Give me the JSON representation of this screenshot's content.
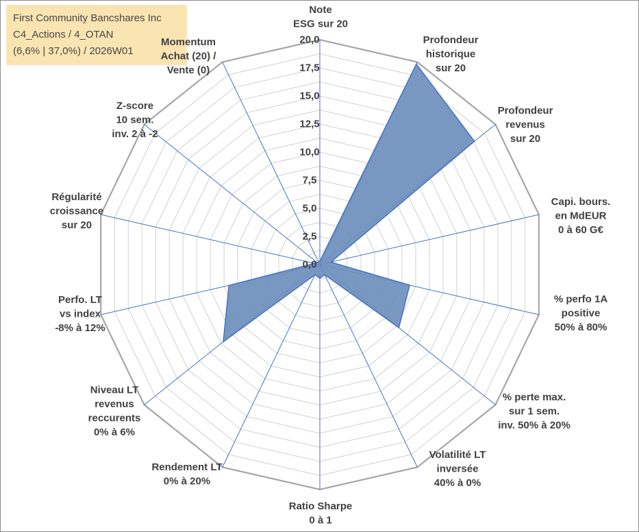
{
  "legend_box": {
    "lines": [
      "First Community Bancshares Inc",
      "C4_Actions / 4_OTAN",
      "(6,6% | 37,0%) / 2026W01"
    ],
    "bg_color": "#FAE5B2"
  },
  "chart_data": {
    "type": "radar",
    "annotation": [
      "First Community Bancshares Inc",
      "C4_Actions / 4_OTAN",
      "(6,6% | 37,0%) / 2026W01"
    ],
    "rmin": 0,
    "rmax": 20,
    "minor_grid_interval": 1.25,
    "tick_labels": [
      "0,0",
      "2,5",
      "5,0",
      "7,5",
      "10,0",
      "12,5",
      "15,0",
      "17,5",
      "20,0"
    ],
    "grid": true,
    "legend_position": "none",
    "axes": [
      {
        "label": "Note\nESG sur 20",
        "value": 0.3
      },
      {
        "label": "Profondeur\nhistorique\nsur 20",
        "value": 19.8
      },
      {
        "label": "Profondeur\nrevenus\nsur 20",
        "value": 17.6
      },
      {
        "label": "Capi. bours.\nen MdEUR\n0 à 60 G€",
        "value": 1.0
      },
      {
        "label": "% perfo 1A\npositive\n50% à 80%",
        "value": 8.2
      },
      {
        "label": "% perte max.\nsur 1 sem.\ninv. 50% à 20%",
        "value": 9.0
      },
      {
        "label": "Volatilité LT\ninversée\n40% à 0%",
        "value": 1.0
      },
      {
        "label": "Ratio Sharpe\n0 à 1",
        "value": 1.2
      },
      {
        "label": "Rendement LT\n0% à 20%",
        "value": 1.0
      },
      {
        "label": "Niveau LT\nrevenus\nreccurents\n0% à 6%",
        "value": 11.0
      },
      {
        "label": "Perfo. LT\nvs index\n-8% à 12%",
        "value": 8.3
      },
      {
        "label": "Régularité\ncroissance\nsur 20",
        "value": 0.5
      },
      {
        "label": "Z-score\n10 sem.\ninv. 2 à -2",
        "value": 0.3
      },
      {
        "label": "Momentum\nAchat (20) /\nVente (0)",
        "value": 0.3
      }
    ],
    "colors": {
      "series_fill": "#6E8FBC",
      "series_stroke": "#4472C4",
      "grid": "#D0D0D0",
      "outer_ring": "#A6A6A6",
      "spoke": "#4472C4",
      "tick_label": "#3F3F3F",
      "category_label": "#404040"
    }
  }
}
